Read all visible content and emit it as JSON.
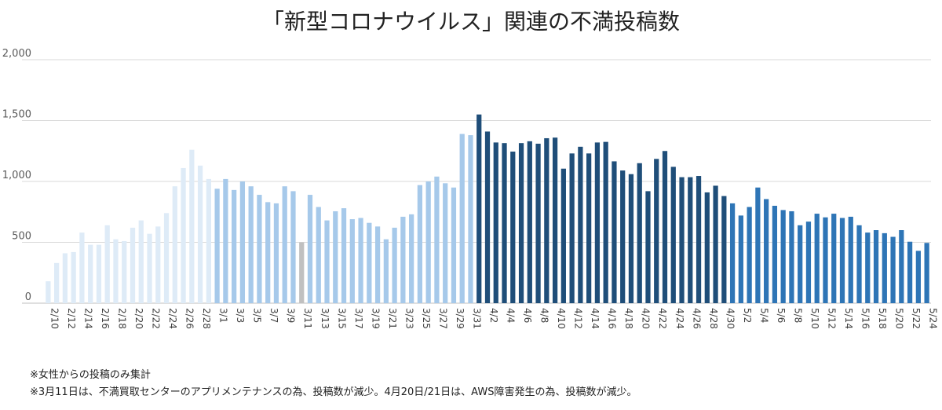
{
  "chart_data": {
    "type": "bar",
    "title": "「新型コロナウイルス」関連の不満投稿数",
    "ylim": [
      0,
      2000
    ],
    "yticks": [
      "0",
      "500",
      "1,000",
      "1,500",
      "2,000"
    ],
    "grid": true,
    "dates": [
      "2/10",
      "2/11",
      "2/12",
      "2/13",
      "2/14",
      "2/15",
      "2/16",
      "2/17",
      "2/18",
      "2/19",
      "2/20",
      "2/21",
      "2/22",
      "2/23",
      "2/24",
      "2/25",
      "2/26",
      "2/27",
      "2/28",
      "2/29",
      "3/1",
      "3/2",
      "3/3",
      "3/4",
      "3/5",
      "3/6",
      "3/7",
      "3/8",
      "3/9",
      "3/10",
      "3/11",
      "3/12",
      "3/13",
      "3/14",
      "3/15",
      "3/16",
      "3/17",
      "3/18",
      "3/19",
      "3/20",
      "3/21",
      "3/22",
      "3/23",
      "3/24",
      "3/25",
      "3/26",
      "3/27",
      "3/28",
      "3/29",
      "3/30",
      "3/31",
      "4/1",
      "4/2",
      "4/3",
      "4/4",
      "4/5",
      "4/6",
      "4/7",
      "4/8",
      "4/9",
      "4/10",
      "4/11",
      "4/12",
      "4/13",
      "4/14",
      "4/15",
      "4/16",
      "4/17",
      "4/18",
      "4/19",
      "4/20",
      "4/21",
      "4/22",
      "4/23",
      "4/24",
      "4/25",
      "4/26",
      "4/27",
      "4/28",
      "4/29",
      "4/30",
      "5/1",
      "5/2",
      "5/3",
      "5/4",
      "5/5",
      "5/6",
      "5/7",
      "5/8",
      "5/9",
      "5/10",
      "5/11",
      "5/12",
      "5/13",
      "5/14",
      "5/15",
      "5/16",
      "5/17",
      "5/18",
      "5/19",
      "5/20",
      "5/21",
      "5/22",
      "5/23",
      "5/24"
    ],
    "xticks": [
      "2/10",
      "2/12",
      "2/14",
      "2/16",
      "2/18",
      "2/20",
      "2/22",
      "2/24",
      "2/26",
      "2/28",
      "3/1",
      "3/3",
      "3/5",
      "3/7",
      "3/9",
      "3/11",
      "3/13",
      "3/15",
      "3/17",
      "3/19",
      "3/21",
      "3/23",
      "3/25",
      "3/27",
      "3/29",
      "3/31",
      "4/2",
      "4/4",
      "4/6",
      "4/8",
      "4/10",
      "4/12",
      "4/14",
      "4/16",
      "4/18",
      "4/20",
      "4/22",
      "4/24",
      "4/26",
      "4/28",
      "4/30",
      "5/2",
      "5/4",
      "5/6",
      "5/8",
      "5/10",
      "5/12",
      "5/14",
      "5/16",
      "5/18",
      "5/20",
      "5/22",
      "5/24"
    ],
    "values": [
      180,
      330,
      410,
      420,
      580,
      480,
      480,
      640,
      525,
      510,
      620,
      680,
      570,
      630,
      740,
      960,
      1110,
      1260,
      1130,
      1020,
      940,
      1020,
      930,
      1000,
      960,
      890,
      830,
      820,
      960,
      920,
      500,
      890,
      790,
      680,
      755,
      780,
      690,
      700,
      660,
      630,
      525,
      620,
      710,
      730,
      970,
      1000,
      1040,
      985,
      950,
      1390,
      1380,
      1550,
      1410,
      1320,
      1315,
      1245,
      1315,
      1330,
      1310,
      1355,
      1360,
      1105,
      1230,
      1285,
      1230,
      1320,
      1325,
      1165,
      1090,
      1060,
      1150,
      920,
      1185,
      1250,
      1120,
      1035,
      1035,
      1045,
      910,
      965,
      880,
      820,
      720,
      790,
      950,
      855,
      800,
      765,
      755,
      640,
      670,
      735,
      705,
      735,
      700,
      710,
      640,
      580,
      600,
      575,
      545,
      600,
      505,
      430,
      495
    ],
    "colors": {
      "february": "#deebf7",
      "march": "#a6c9ea",
      "march_11": "#c0c0c0",
      "april": "#1f4e79",
      "may": "#2e75b6",
      "grid": "#d9d9d9",
      "axis": "#bfbfbf"
    }
  },
  "notes": [
    "※女性からの投稿のみ集計",
    "※3月11日は、不満買取センターのアプリメンテナンスの為、投稿数が減少。4月20日/21日は、AWS障害発生の為、投稿数が減少。"
  ]
}
